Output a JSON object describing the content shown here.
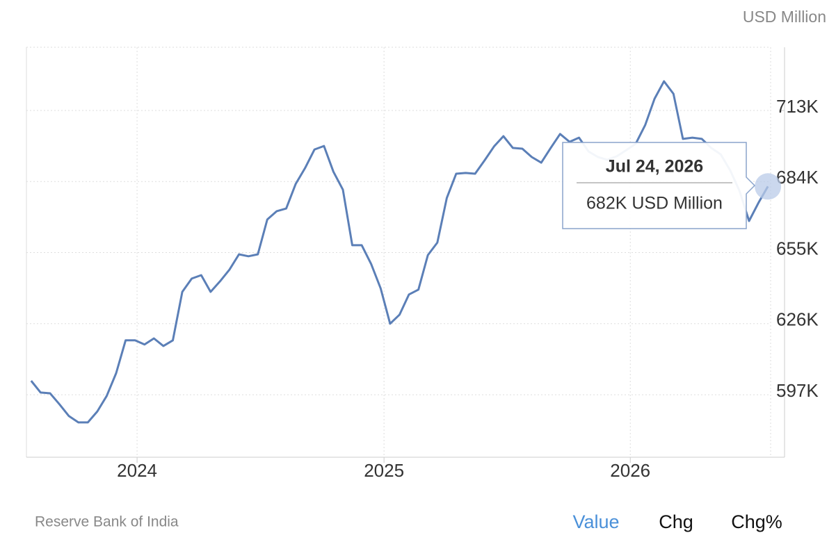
{
  "chart_data": {
    "type": "line",
    "unit_label": "USD Million",
    "source": "Reserve Bank of India",
    "tabs": [
      "Value",
      "Chg",
      "Chg%"
    ],
    "active_tab": 0,
    "tooltip": {
      "date": "Jul 24, 2026",
      "text": "682K USD Million",
      "index": 78
    },
    "x": [
      "2023-07-28",
      "2023-08-11",
      "2023-08-25",
      "2023-09-08",
      "2023-09-22",
      "2023-10-06",
      "2023-10-20",
      "2023-11-03",
      "2023-11-17",
      "2023-12-01",
      "2023-12-15",
      "2023-12-29",
      "2024-01-12",
      "2024-01-26",
      "2024-02-09",
      "2024-02-23",
      "2024-03-08",
      "2024-03-22",
      "2024-04-05",
      "2024-04-19",
      "2024-05-03",
      "2024-05-17",
      "2024-05-31",
      "2024-06-14",
      "2024-06-28",
      "2024-07-12",
      "2024-07-26",
      "2024-08-09",
      "2024-08-23",
      "2024-09-06",
      "2024-09-20",
      "2024-10-04",
      "2024-10-18",
      "2024-11-01",
      "2024-11-15",
      "2024-11-29",
      "2024-12-13",
      "2024-12-27",
      "2025-01-10",
      "2025-01-24",
      "2025-02-07",
      "2025-02-21",
      "2025-03-07",
      "2025-03-21",
      "2025-04-04",
      "2025-04-18",
      "2025-05-02",
      "2025-05-16",
      "2025-05-30",
      "2025-06-13",
      "2025-06-27",
      "2025-07-11",
      "2025-07-25",
      "2025-08-08",
      "2025-08-22",
      "2025-09-05",
      "2025-09-19",
      "2025-10-03",
      "2025-10-17",
      "2025-10-31",
      "2025-11-14",
      "2025-11-28",
      "2025-12-12",
      "2025-12-26",
      "2026-01-09",
      "2026-01-23",
      "2026-02-06",
      "2026-02-20",
      "2026-03-06",
      "2026-03-20",
      "2026-04-03",
      "2026-04-17",
      "2026-05-01",
      "2026-05-15",
      "2026-05-29",
      "2026-06-12",
      "2026-06-26",
      "2026-07-10",
      "2026-07-24"
    ],
    "series": [
      {
        "name": "Value",
        "color": "#5b7fb7",
        "values": [
          602700,
          597900,
          597600,
          593100,
          588300,
          585700,
          585700,
          590200,
          596500,
          605800,
          619200,
          619200,
          617500,
          620000,
          616900,
          619200,
          639000,
          644400,
          645800,
          639000,
          643300,
          648100,
          654300,
          653500,
          654300,
          668500,
          671900,
          673000,
          683000,
          689500,
          697100,
          698500,
          688000,
          680700,
          658000,
          658000,
          650300,
          640400,
          626000,
          629700,
          637900,
          639900,
          654000,
          659100,
          677300,
          687200,
          687500,
          687200,
          692600,
          698300,
          702500,
          697700,
          697400,
          694000,
          691700,
          697700,
          703400,
          700200,
          701900,
          696300,
          694000,
          692900,
          694300,
          696800,
          699400,
          707000,
          717800,
          724900,
          719800,
          701400,
          701900,
          701400,
          697700,
          695100,
          688600,
          680100,
          667900,
          675300,
          682000
        ]
      }
    ],
    "xlim": [
      "2023-07-21",
      "2026-07-28"
    ],
    "xticks": [
      {
        "value": "2024-01-01",
        "label": "2024"
      },
      {
        "value": "2025-01-01",
        "label": "2025"
      },
      {
        "value": "2026-01-01",
        "label": "2026"
      }
    ],
    "ylim": [
      571500,
      738800
    ],
    "yticks": [
      {
        "value": 597000,
        "label": "597K"
      },
      {
        "value": 626000,
        "label": "626K"
      },
      {
        "value": 655000,
        "label": "655K"
      },
      {
        "value": 684000,
        "label": "684K"
      },
      {
        "value": 713000,
        "label": "713K"
      }
    ],
    "grid": true
  }
}
